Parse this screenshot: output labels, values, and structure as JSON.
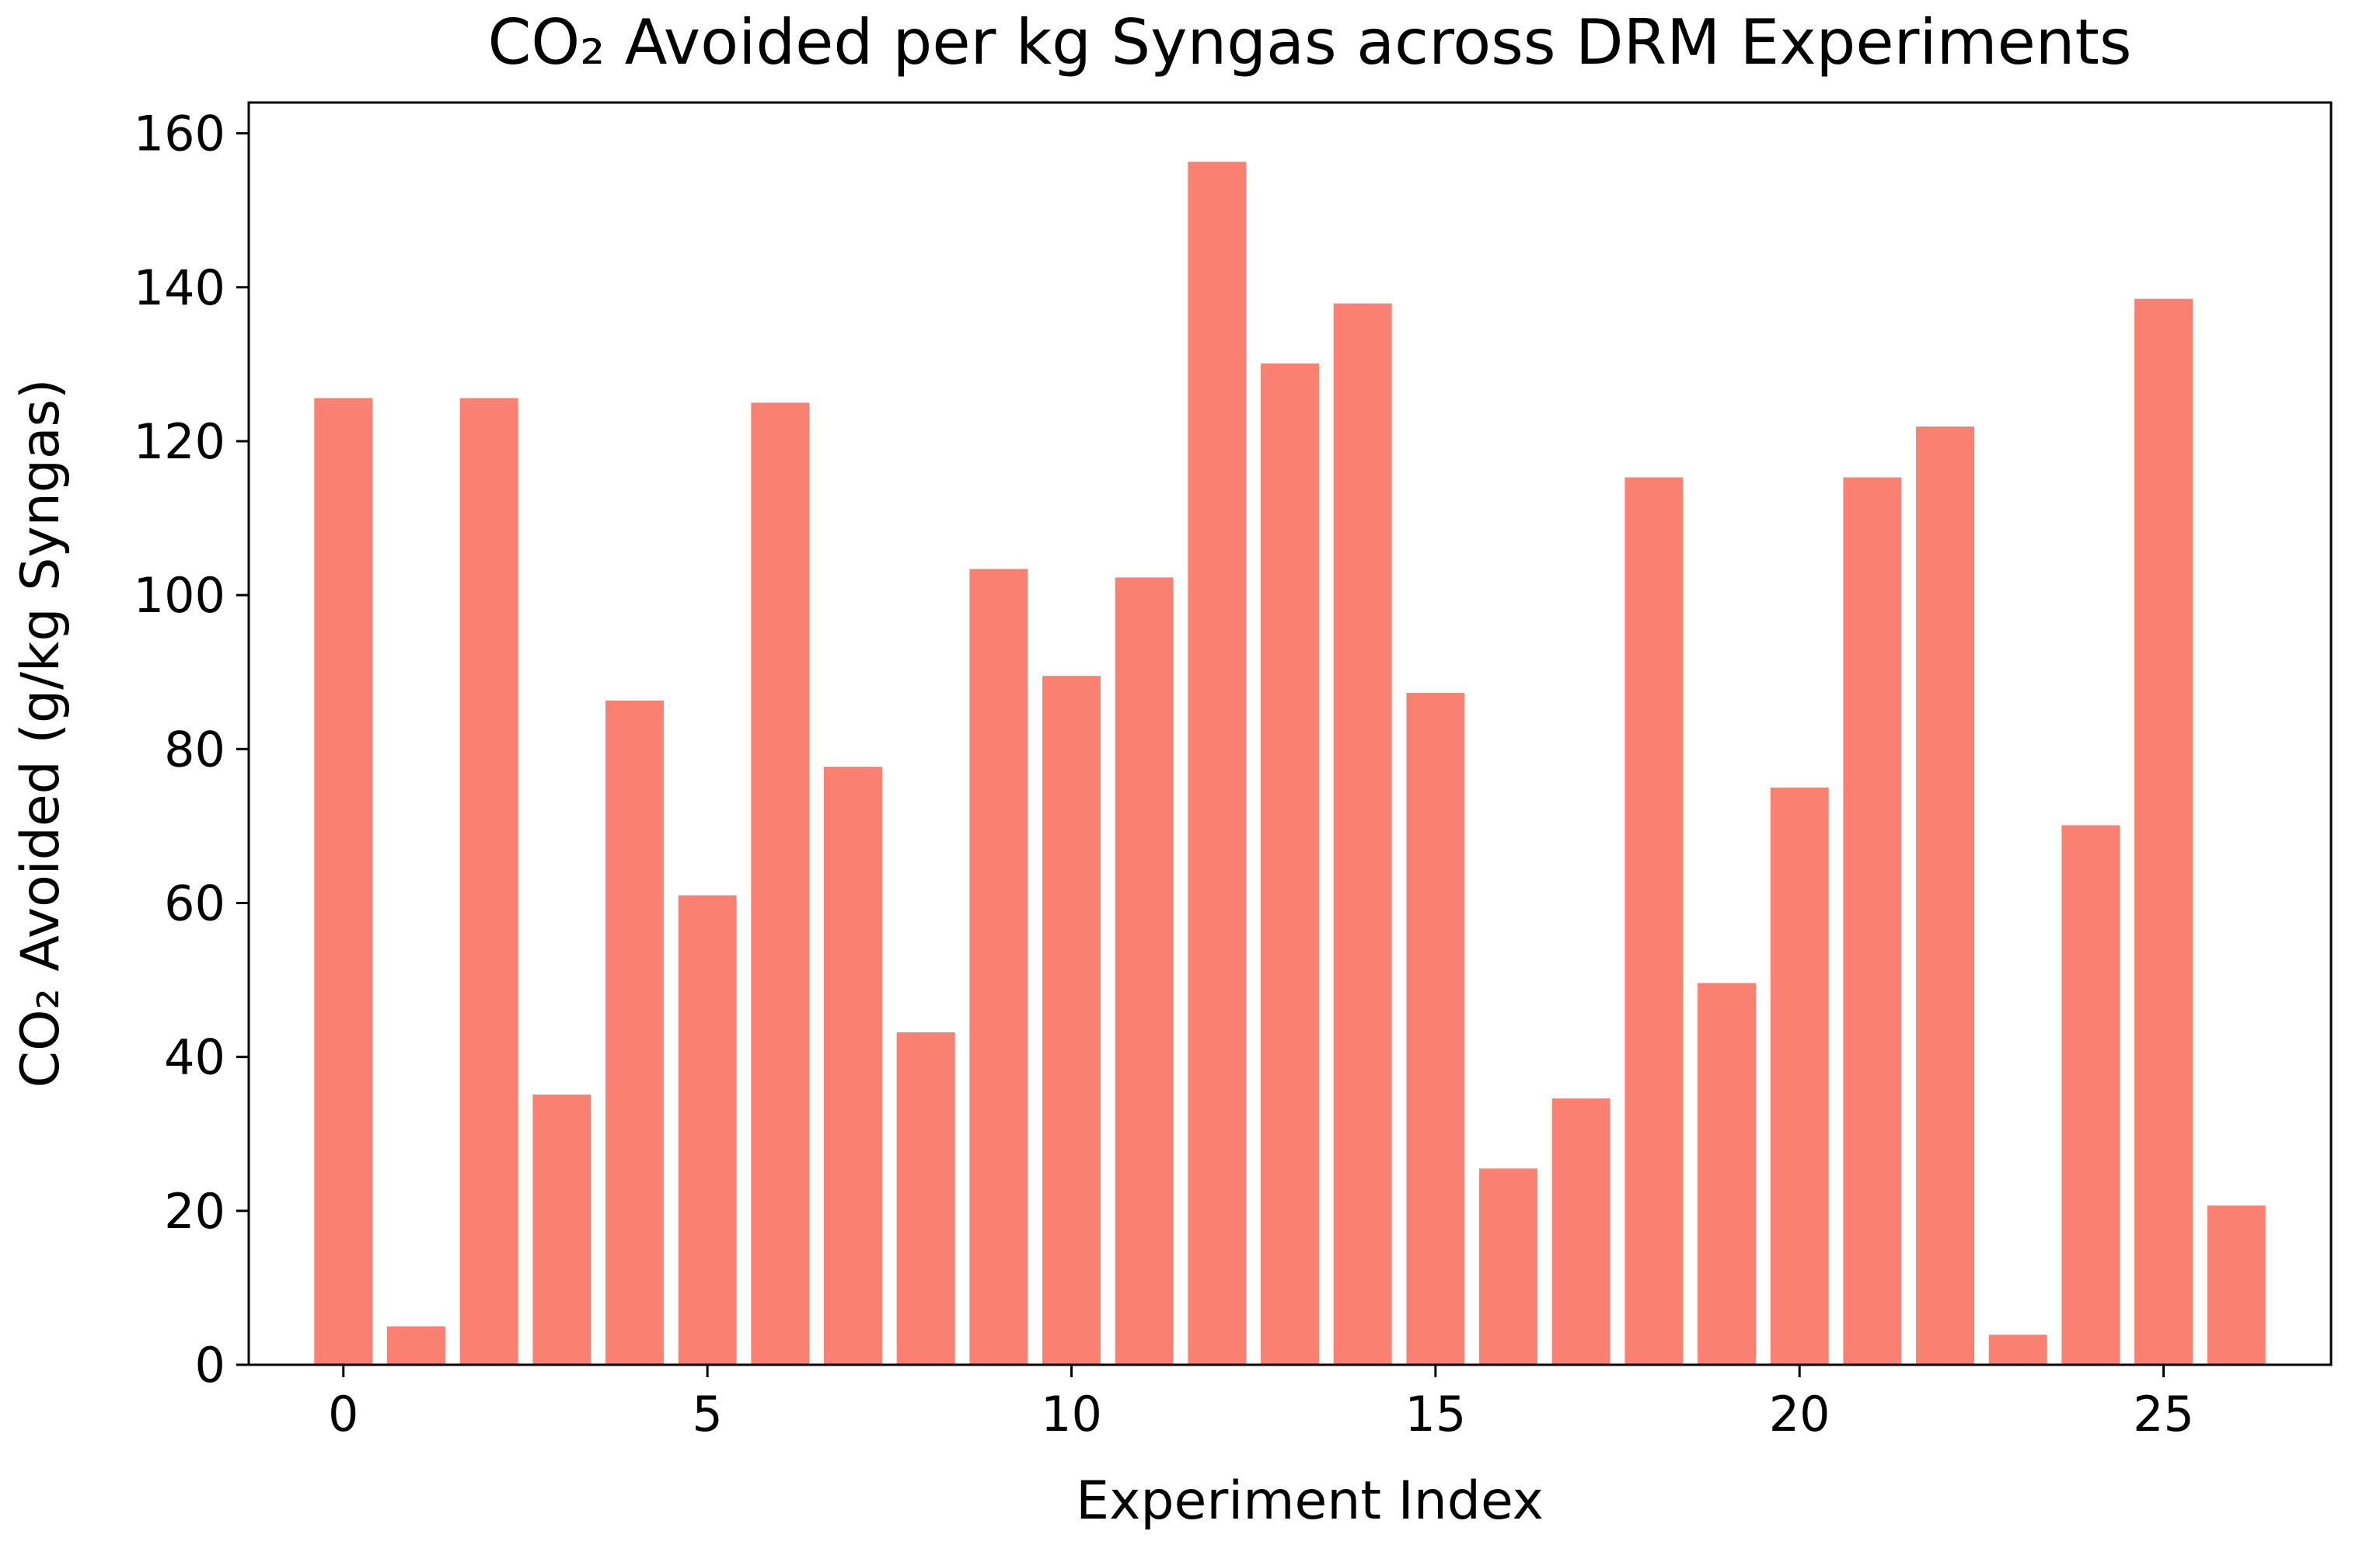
{
  "chart_data": {
    "type": "bar",
    "title": "CO₂ Avoided per kg Syngas across DRM Experiments",
    "xlabel": "Experiment Index",
    "ylabel": "CO₂ Avoided (g/kg Syngas)",
    "x": [
      0,
      1,
      2,
      3,
      4,
      5,
      6,
      7,
      8,
      9,
      10,
      11,
      12,
      13,
      14,
      15,
      16,
      17,
      18,
      19,
      20,
      21,
      22,
      23,
      24,
      25,
      26
    ],
    "values": [
      125.6,
      5.0,
      125.6,
      35.1,
      86.3,
      61.0,
      125.0,
      77.7,
      43.2,
      103.4,
      89.5,
      102.3,
      156.3,
      130.1,
      137.9,
      87.3,
      25.5,
      34.6,
      115.3,
      49.6,
      75.0,
      115.3,
      121.9,
      3.9,
      70.1,
      138.5,
      20.7
    ],
    "bar_color": "#fa8072",
    "xlim": [
      -1.3,
      27.3
    ],
    "ylim": [
      0,
      164
    ],
    "xticks": [
      0,
      5,
      10,
      15,
      20,
      25
    ],
    "yticks": [
      0,
      20,
      40,
      60,
      80,
      100,
      120,
      140,
      160
    ],
    "grid": false,
    "legend": false
  }
}
